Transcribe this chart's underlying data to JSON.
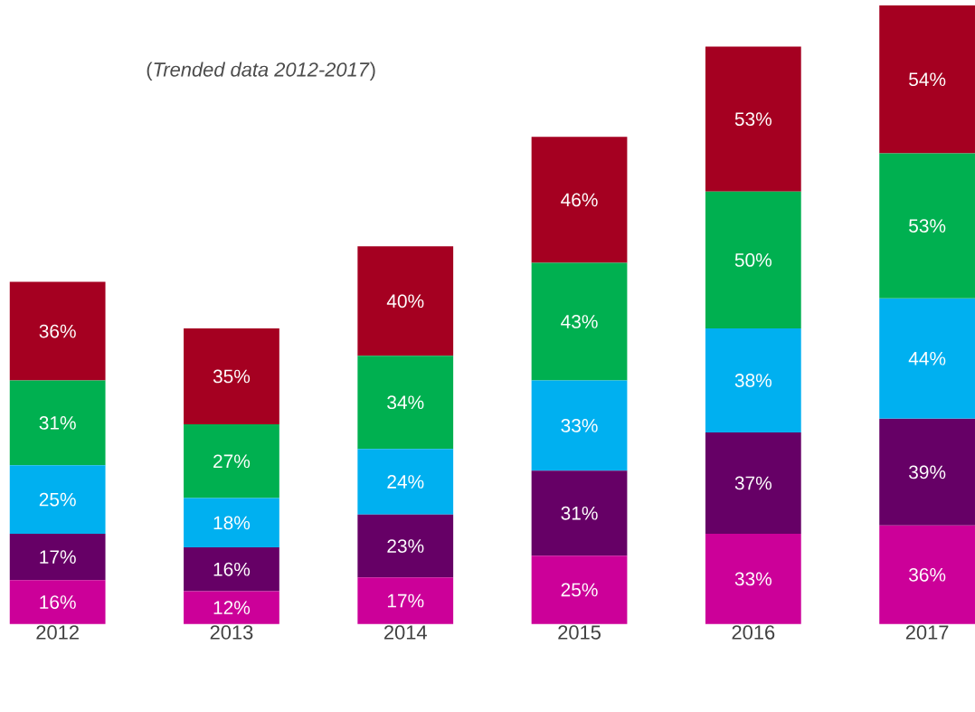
{
  "chart_data": {
    "type": "bar",
    "stacked": true,
    "subtitle": "(*Trended data 2012-2017*)",
    "categories": [
      "2012",
      "2013",
      "2014",
      "2015",
      "2016",
      "2017"
    ],
    "series": [
      {
        "color": "#cc0099",
        "values": [
          16,
          12,
          17,
          25,
          33,
          36
        ],
        "value_labels": [
          "16%",
          "12%",
          "17%",
          "25%",
          "33%",
          "36%"
        ]
      },
      {
        "color": "#660066",
        "values": [
          17,
          16,
          23,
          31,
          37,
          39
        ],
        "value_labels": [
          "17%",
          "16%",
          "23%",
          "31%",
          "37%",
          "39%"
        ]
      },
      {
        "color": "#00b0f0",
        "values": [
          25,
          18,
          24,
          33,
          38,
          44
        ],
        "value_labels": [
          "25%",
          "18%",
          "24%",
          "33%",
          "38%",
          "44%"
        ]
      },
      {
        "color": "#00b050",
        "values": [
          31,
          27,
          34,
          43,
          50,
          53
        ],
        "value_labels": [
          "31%",
          "27%",
          "34%",
          "43%",
          "50%",
          "53%"
        ]
      },
      {
        "color": "#a50021",
        "values": [
          36,
          35,
          40,
          46,
          53,
          54
        ],
        "value_labels": [
          "36%",
          "35%",
          "40%",
          "46%",
          "53%",
          "54%"
        ]
      }
    ]
  }
}
